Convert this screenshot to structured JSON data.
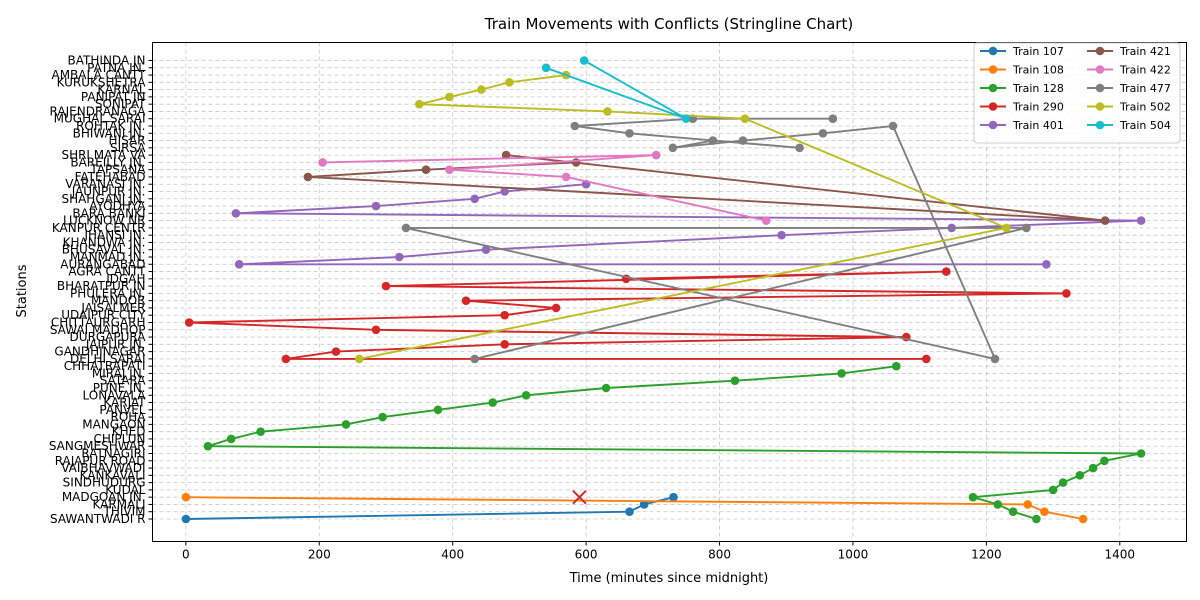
{
  "chart_data": {
    "type": "line",
    "title": "Train Movements with Conflicts (Stringline Chart)",
    "xlabel": "Time (minutes since midnight)",
    "ylabel": "Stations",
    "xlim": [
      -50,
      1500
    ],
    "xticks": [
      0,
      200,
      400,
      600,
      800,
      1000,
      1200,
      1400
    ],
    "grid": true,
    "legend_position": "top-right",
    "legend_columns": 2,
    "stations": [
      "SAWANTWADI R",
      "THIVIM",
      "KARMALI",
      "MADGOAN JN.",
      "KUDAL",
      "SINDHUDURG",
      "KANKAVALI",
      "VAIBHAVWADI",
      "RAJAPUR ROAD",
      "RATNAGIRI",
      "SANGMESHWAR",
      "CHIPLUN",
      "KHED",
      "MANGAON",
      "ROHA",
      "PANVEL",
      "KARJAT",
      "LONAVALA",
      "PUNE JN.",
      "SATARA",
      "MIRAJ JN.",
      "CHHATRAPATI",
      "DELHI SARAI",
      "GANDHINAGAR",
      "JAIPUR JN.",
      "DURGAPURA",
      "SAWAI MADHOP",
      "CHITTAURGARH",
      "UDAIPUR CITY",
      "JAISALMER",
      "MANDOR",
      "PHULERA JN.",
      "BHARATPUR JN",
      "IDGAH",
      "AGRA CANTT",
      "AURANGABAD",
      "MANMAD JN.",
      "BHUSAVAL JN.",
      "KHANDWA JN.",
      "JHANSI JN.",
      "KANPUR CENTR",
      "LUCKNOW NR",
      "BARA BANKI",
      "AYODHYA",
      "SHAHGANJ JN.",
      "JAUNPUR JN.",
      "VARANASI JN.",
      "FATEHABAD",
      "TAPSANA",
      "BAREILLY JN.",
      "SHRI MATA VA",
      "SIRSA",
      "HISAR",
      "BHIWANI JN.",
      "ROHTAK JN.",
      "MUGHAL SARAI",
      "RAJENDRANAGA",
      "SONIPAT",
      "PANIPAT JN",
      "KARNAL",
      "KURUKSHETRA",
      "AMBALA CANTT",
      "PATNA JN.",
      "BATHINDA JN"
    ],
    "series": [
      {
        "name": "Train 107",
        "color": "#1f77b4",
        "points": [
          [
            0,
            "SAWANTWADI R"
          ],
          [
            665,
            "THIVIM"
          ],
          [
            687,
            "KARMALI"
          ],
          [
            731,
            "MADGOAN JN."
          ]
        ]
      },
      {
        "name": "Train 108",
        "color": "#ff7f0e",
        "points": [
          [
            0,
            "MADGOAN JN."
          ],
          [
            1262,
            "KARMALI"
          ],
          [
            1287,
            "THIVIM"
          ],
          [
            1345,
            "SAWANTWADI R"
          ]
        ]
      },
      {
        "name": "Train 128",
        "color": "#2ca02c",
        "points": [
          [
            1275,
            "SAWANTWADI R"
          ],
          [
            1240,
            "THIVIM"
          ],
          [
            1217,
            "KARMALI"
          ],
          [
            1180,
            "MADGOAN JN."
          ],
          [
            1300,
            "KUDAL"
          ],
          [
            1315,
            "SINDHUDURG"
          ],
          [
            1340,
            "KANKAVALI"
          ],
          [
            1360,
            "VAIBHAVWADI"
          ],
          [
            1377,
            "RAJAPUR ROAD"
          ],
          [
            1432,
            "RATNAGIRI"
          ],
          [
            33,
            "SANGMESHWAR"
          ],
          [
            68,
            "CHIPLUN"
          ],
          [
            112,
            "KHED"
          ],
          [
            240,
            "MANGAON"
          ],
          [
            295,
            "ROHA"
          ],
          [
            378,
            "PANVEL"
          ],
          [
            460,
            "KARJAT"
          ],
          [
            510,
            "LONAVALA"
          ],
          [
            630,
            "PUNE JN."
          ],
          [
            823,
            "SATARA"
          ],
          [
            983,
            "MIRAJ JN."
          ],
          [
            1065,
            "CHHATRAPATI"
          ]
        ]
      },
      {
        "name": "Train 290",
        "color": "#d62728",
        "points": [
          [
            1110,
            "DELHI SARAI"
          ],
          [
            150,
            "DELHI SARAI"
          ],
          [
            225,
            "GANDHINAGAR"
          ],
          [
            478,
            "JAIPUR JN."
          ],
          [
            1080,
            "DURGAPURA"
          ],
          [
            285,
            "SAWAI MADHOP"
          ],
          [
            5,
            "CHITTAURGARH"
          ],
          [
            478,
            "UDAIPUR CITY"
          ],
          [
            555,
            "JAISALMER"
          ],
          [
            420,
            "MANDOR"
          ],
          [
            1320,
            "PHULERA JN."
          ],
          [
            300,
            "BHARATPUR JN"
          ],
          [
            1140,
            "AGRA CANTT"
          ],
          [
            660,
            "IDGAH"
          ]
        ]
      },
      {
        "name": "Train 401",
        "color": "#9467bd",
        "points": [
          [
            1290,
            "AURANGABAD"
          ],
          [
            80,
            "AURANGABAD"
          ],
          [
            320,
            "MANMAD JN."
          ],
          [
            450,
            "BHUSAVAL JN."
          ],
          [
            893,
            "JHANSI JN."
          ],
          [
            1148,
            "KANPUR CENTR"
          ],
          [
            1432,
            "LUCKNOW NR"
          ],
          [
            75,
            "BARA BANKI"
          ],
          [
            285,
            "AYODHYA"
          ],
          [
            433,
            "SHAHGANJ JN."
          ],
          [
            478,
            "JAUNPUR JN."
          ],
          [
            600,
            "VARANASI JN."
          ]
        ]
      },
      {
        "name": "Train 421",
        "color": "#8c564b",
        "points": [
          [
            585,
            "BAREILLY JN."
          ],
          [
            360,
            "TAPSANA"
          ],
          [
            183,
            "FATEHABAD"
          ],
          [
            1378,
            "LUCKNOW NR"
          ],
          [
            480,
            "SHRI MATA VA"
          ]
        ]
      },
      {
        "name": "Train 422",
        "color": "#e377c2",
        "points": [
          [
            205,
            "BAREILLY JN."
          ],
          [
            705,
            "SHRI MATA VA"
          ],
          [
            395,
            "TAPSANA"
          ],
          [
            570,
            "FATEHABAD"
          ],
          [
            870,
            "LUCKNOW NR"
          ]
        ]
      },
      {
        "name": "Train 477",
        "color": "#7f7f7f",
        "points": [
          [
            433,
            "DELHI SARAI"
          ],
          [
            1260,
            "KANPUR CENTR"
          ],
          [
            330,
            "KANPUR CENTR"
          ],
          [
            1213,
            "DELHI SARAI"
          ],
          [
            1060,
            "ROHTAK JN."
          ],
          [
            955,
            "BHIWANI JN."
          ],
          [
            835,
            "HISAR"
          ],
          [
            730,
            "SIRSA"
          ],
          [
            790,
            "HISAR"
          ],
          [
            920,
            "SIRSA"
          ],
          [
            665,
            "BHIWANI JN."
          ],
          [
            583,
            "ROHTAK JN."
          ],
          [
            760,
            "MUGHAL SARAI"
          ],
          [
            970,
            "MUGHAL SARAI"
          ]
        ]
      },
      {
        "name": "Train 502",
        "color": "#bcbd22",
        "points": [
          [
            260,
            "DELHI SARAI"
          ],
          [
            1230,
            "KANPUR CENTR"
          ],
          [
            838,
            "MUGHAL SARAI"
          ],
          [
            632,
            "RAJENDRANAGA"
          ],
          [
            350,
            "SONIPAT"
          ],
          [
            395,
            "PANIPAT JN"
          ],
          [
            443,
            "KARNAL"
          ],
          [
            485,
            "KURUKSHETRA"
          ],
          [
            570,
            "AMBALA CANTT"
          ]
        ]
      },
      {
        "name": "Train 504",
        "color": "#17becf",
        "points": [
          [
            597,
            "BATHINDA JN"
          ],
          [
            750,
            "MUGHAL SARAI"
          ],
          [
            540,
            "PATNA JN."
          ]
        ]
      }
    ],
    "conflicts": [
      {
        "time": 590,
        "station": "MADGOAN JN.",
        "marker": "x",
        "color": "#d62728"
      }
    ]
  }
}
